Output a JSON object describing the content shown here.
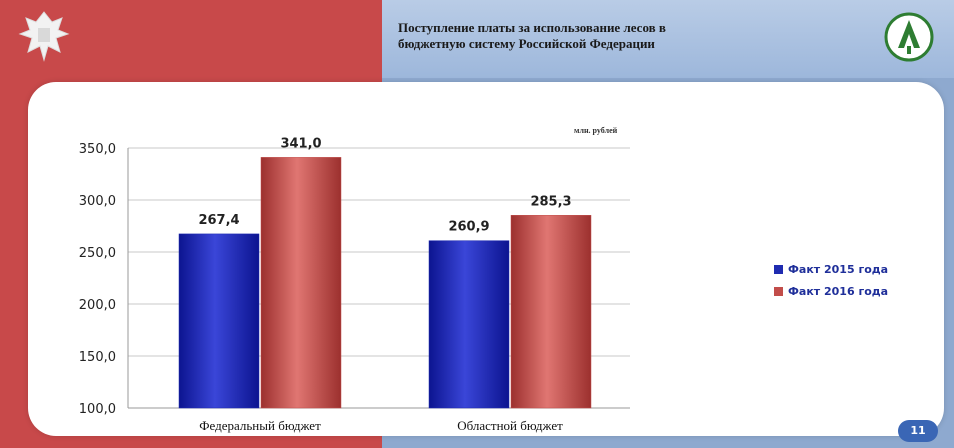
{
  "slide": {
    "title_lines": [
      "Поступление платы за использование лесов в",
      "бюджетную систему Российской Федерации"
    ],
    "unit_label": "млн. рублей",
    "page_number": "11"
  },
  "colors": {
    "left_panel": "#c8494a",
    "right_panel": "#8ea9cf",
    "series_2015": "#1f2bb0",
    "series_2016": "#c24d4a",
    "legend_text": "#1f2f9a"
  },
  "icons": {
    "emblem": "coat-of-arms-icon",
    "logo": "forestry-logo-icon"
  },
  "chart_data": {
    "type": "bar",
    "categories": [
      "Федеральный бюджет",
      "Областной бюджет"
    ],
    "series": [
      {
        "name": "Факт 2015 года",
        "values": [
          267.4,
          260.9
        ],
        "labels": [
          "267,4",
          "260,9"
        ]
      },
      {
        "name": "Факт 2016 года",
        "values": [
          341.0,
          285.3
        ],
        "labels": [
          "341,0",
          "285,3"
        ]
      }
    ],
    "y_ticks": [
      "100,0",
      "150,0",
      "200,0",
      "250,0",
      "300,0",
      "350,0"
    ],
    "ylim": [
      100,
      350
    ],
    "grid": true,
    "legend_position": "right"
  }
}
